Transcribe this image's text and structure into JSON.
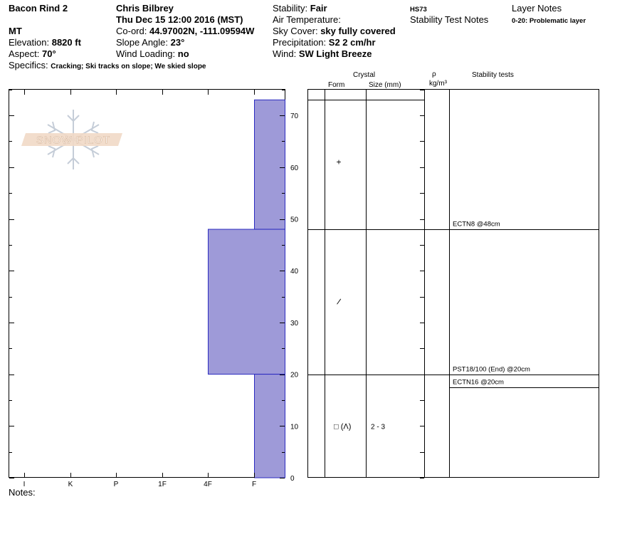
{
  "header": {
    "pit_name": "Bacon Rind 2",
    "state": "MT",
    "elevation_label": "Elevation:",
    "elevation": "8820 ft",
    "aspect_label": "Aspect:",
    "aspect": "70°",
    "specifics_label": "Specifics:",
    "specifics": "Cracking; Ski tracks on slope; We skied slope",
    "observer": "Chris Bilbrey",
    "datetime": "Thu Dec 15 12:00 2016 (MST)",
    "coord_label": "Co-ord:",
    "coord": "44.97002N, -111.09594W",
    "slope_label": "Slope Angle:",
    "slope": "23°",
    "wind_loading_label": "Wind Loading:",
    "wind_loading": "no",
    "stability_label": "Stability:",
    "stability": "Fair",
    "air_temp_label": "Air Temperature:",
    "sky_label": "Sky Cover:",
    "sky": "sky fully covered",
    "precip_label": "Precipitation:",
    "precip": "S2 2 cm/hr",
    "wind_label": "Wind:",
    "wind": "SW Light Breeze",
    "hs": "HS73",
    "stability_notes_title": "Stability Test Notes",
    "layer_notes_title": "Layer Notes",
    "layer_note_1": "0-20: Problematic layer"
  },
  "logo": {
    "text": "SNOW PILOT"
  },
  "columns": {
    "crystal": "Crystal",
    "form": "Form",
    "size": "Size (mm)",
    "rho": "ρ",
    "density_unit": "kg/m³",
    "stability_tests": "Stability tests"
  },
  "notes_label": "Notes:",
  "colors": {
    "layer_fill": "#9e9ad8",
    "layer_stroke": "#2b2bc0"
  },
  "chart_data": {
    "type": "bar",
    "orientation": "horizontal",
    "y_axis": {
      "min": 0,
      "max": 75,
      "ticks": [
        0,
        10,
        20,
        30,
        40,
        50,
        60,
        70
      ]
    },
    "hardness_scale": [
      "I",
      "K",
      "P",
      "1F",
      "4F",
      "F"
    ],
    "layers": [
      {
        "bottom": 48,
        "top": 73,
        "hardness": "F"
      },
      {
        "bottom": 20,
        "top": 48,
        "hardness": "4F"
      },
      {
        "bottom": 0,
        "top": 20,
        "hardness": "F"
      }
    ],
    "crystals": [
      {
        "height": 61,
        "form_symbol": "+",
        "size": ""
      },
      {
        "height": 34,
        "form_symbol": "/",
        "size": ""
      },
      {
        "height": 10,
        "form_symbol": "□ (Λ)",
        "size": "2 - 3"
      }
    ],
    "stability_tests": [
      {
        "height": 48,
        "label": "ECTN8 @48cm"
      },
      {
        "height": 20,
        "label": "PST18/100 (End) @20cm"
      },
      {
        "height": 20,
        "label": "ECTN16 @20cm"
      }
    ]
  }
}
